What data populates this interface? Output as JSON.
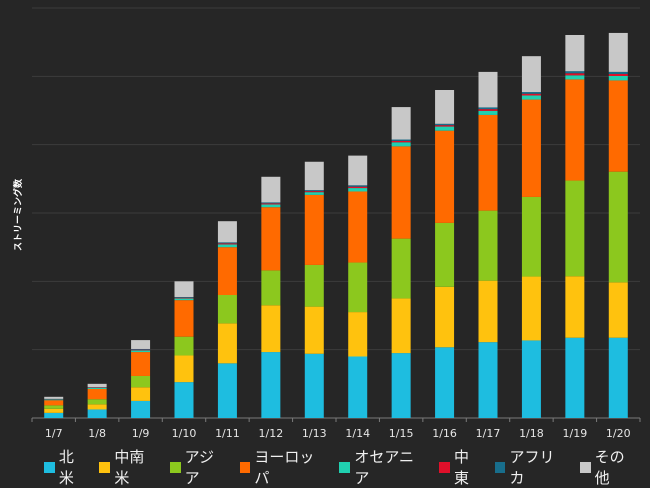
{
  "chart_data": {
    "type": "bar",
    "stacked": true,
    "title": "",
    "xlabel": "",
    "ylabel": "ストリーミング数",
    "ylim": [
      0,
      12
    ],
    "grid": true,
    "legend_position": "bottom",
    "categories": [
      "1/7",
      "1/8",
      "1/9",
      "1/10",
      "1/11",
      "1/12",
      "1/13",
      "1/14",
      "1/15",
      "1/16",
      "1/17",
      "1/18",
      "1/19",
      "1/20"
    ],
    "series": [
      {
        "name": "北米",
        "color": "#1ebde0",
        "values": [
          0.15,
          0.25,
          0.5,
          1.05,
          1.6,
          1.93,
          1.88,
          1.8,
          1.9,
          2.07,
          2.22,
          2.27,
          2.35,
          2.35
        ]
      },
      {
        "name": "中南米",
        "color": "#ffc20e",
        "values": [
          0.12,
          0.15,
          0.4,
          0.78,
          1.17,
          1.37,
          1.38,
          1.3,
          1.6,
          1.77,
          1.8,
          1.87,
          1.8,
          1.62
        ]
      },
      {
        "name": "アジア",
        "color": "#8cc81e",
        "values": [
          0.1,
          0.15,
          0.33,
          0.55,
          0.83,
          1.02,
          1.22,
          1.45,
          1.75,
          1.87,
          2.05,
          2.33,
          2.8,
          3.24
        ]
      },
      {
        "name": "ヨーロッパ",
        "color": "#ff6a00",
        "values": [
          0.15,
          0.3,
          0.7,
          1.07,
          1.4,
          1.85,
          2.05,
          2.08,
          2.7,
          2.7,
          2.8,
          2.85,
          2.96,
          2.67
        ]
      },
      {
        "name": "オセアニア",
        "color": "#20d0b0",
        "values": [
          0.02,
          0.03,
          0.05,
          0.05,
          0.08,
          0.08,
          0.08,
          0.1,
          0.12,
          0.12,
          0.12,
          0.12,
          0.12,
          0.13
        ]
      },
      {
        "name": "中東",
        "color": "#e0102a",
        "values": [
          0.01,
          0.01,
          0.02,
          0.02,
          0.03,
          0.03,
          0.03,
          0.04,
          0.04,
          0.04,
          0.05,
          0.05,
          0.06,
          0.06
        ]
      },
      {
        "name": "アフリカ",
        "color": "#186e8c",
        "values": [
          0.01,
          0.01,
          0.02,
          0.02,
          0.03,
          0.03,
          0.03,
          0.04,
          0.04,
          0.04,
          0.05,
          0.05,
          0.06,
          0.06
        ]
      },
      {
        "name": "その他",
        "color": "#c8c8c8",
        "values": [
          0.06,
          0.1,
          0.26,
          0.46,
          0.62,
          0.75,
          0.83,
          0.87,
          0.95,
          0.99,
          1.04,
          1.05,
          1.06,
          1.14
        ]
      }
    ]
  }
}
